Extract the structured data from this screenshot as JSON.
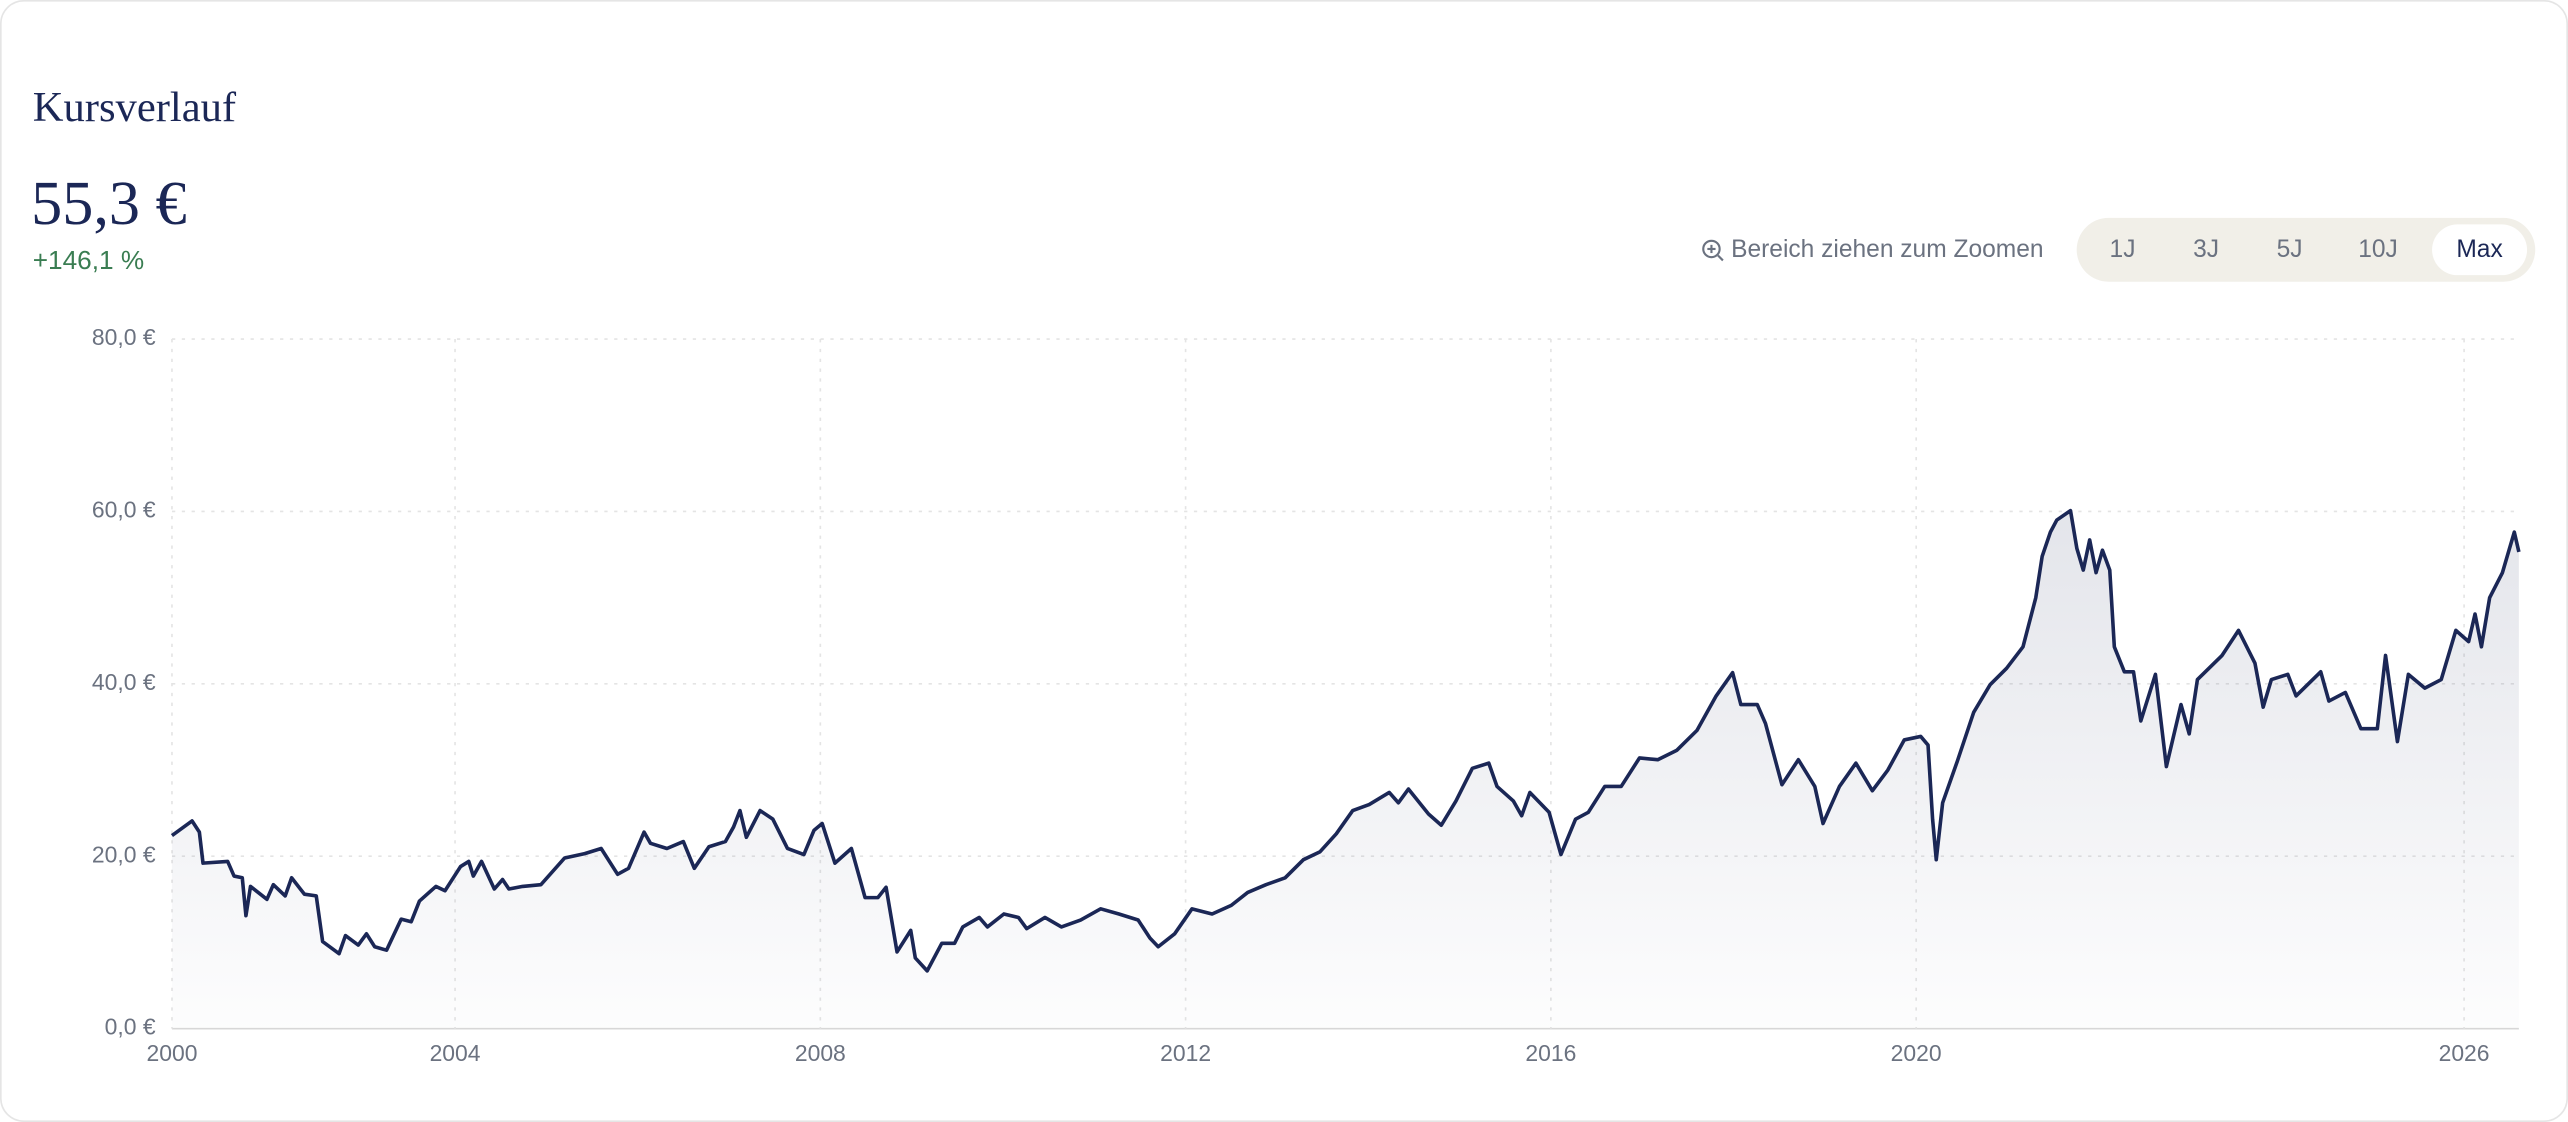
{
  "header": {
    "title": "Kursverlauf",
    "price": "55,3 €",
    "change": "+146,1 %",
    "hint": "Bereich ziehen zum Zoomen",
    "ranges": [
      "1J",
      "3J",
      "5J",
      "10J",
      "Max"
    ],
    "active_range": 4
  },
  "chart_data": {
    "type": "line",
    "color": "#1b2756",
    "grid": true,
    "xlim": [
      2000.9,
      2026.6
    ],
    "xticks": [
      {
        "value": 2000.9,
        "label": "2000"
      },
      2004,
      2008,
      2012,
      2016,
      2020,
      2026
    ],
    "ylim": [
      0,
      80
    ],
    "yticks": [
      {
        "value": 0,
        "label": "0,0 €"
      },
      {
        "value": 20,
        "label": "20,0 €"
      },
      {
        "value": 40,
        "label": "40,0 €"
      },
      {
        "value": 60,
        "label": "60,0 €"
      },
      {
        "value": 80,
        "label": "80,0 €"
      }
    ],
    "x": [
      2000.9,
      2001.12,
      2001.2,
      2001.24,
      2001.51,
      2001.58,
      2001.67,
      2001.71,
      2001.76,
      2001.94,
      2002.01,
      2002.14,
      2002.21,
      2002.35,
      2002.48,
      2002.55,
      2002.73,
      2002.8,
      2002.94,
      2003.03,
      2003.12,
      2003.25,
      2003.41,
      2003.52,
      2003.61,
      2003.79,
      2003.89,
      2004.06,
      2004.15,
      2004.2,
      2004.29,
      2004.43,
      2004.52,
      2004.59,
      2004.74,
      2004.94,
      2005.2,
      2005.42,
      2005.6,
      2005.78,
      2005.9,
      2006.07,
      2006.14,
      2006.32,
      2006.5,
      2006.62,
      2006.78,
      2006.96,
      2007.05,
      2007.12,
      2007.19,
      2007.34,
      2007.48,
      2007.64,
      2007.82,
      2007.93,
      2008.02,
      2008.16,
      2008.34,
      2008.49,
      2008.63,
      2008.72,
      2008.84,
      2008.99,
      2009.04,
      2009.17,
      2009.33,
      2009.47,
      2009.56,
      2009.74,
      2009.83,
      2010.01,
      2010.17,
      2010.26,
      2010.46,
      2010.64,
      2010.85,
      2011.07,
      2011.27,
      2011.48,
      2011.61,
      2011.7,
      2011.88,
      2012.07,
      2012.29,
      2012.5,
      2012.68,
      2012.88,
      2013.09,
      2013.29,
      2013.47,
      2013.65,
      2013.83,
      2014.01,
      2014.23,
      2014.33,
      2014.44,
      2014.66,
      2014.8,
      2014.96,
      2015.14,
      2015.32,
      2015.41,
      2015.59,
      2015.68,
      2015.77,
      2015.98,
      2016.11,
      2016.27,
      2016.41,
      2016.59,
      2016.77,
      2016.97,
      2017.17,
      2017.38,
      2017.6,
      2017.81,
      2017.99,
      2018.08,
      2018.26,
      2018.35,
      2018.53,
      2018.71,
      2018.89,
      2018.98,
      2019.16,
      2019.34,
      2019.52,
      2019.69,
      2019.87,
      2020.05,
      2020.13,
      2020.18,
      2020.22,
      2020.29,
      2020.45,
      2020.63,
      2020.81,
      2020.99,
      2021.17,
      2021.31,
      2021.38,
      2021.47,
      2021.54,
      2021.69,
      2021.76,
      2021.83,
      2021.9,
      2021.97,
      2022.04,
      2022.12,
      2022.17,
      2022.28,
      2022.38,
      2022.46,
      2022.62,
      2022.74,
      2022.9,
      2022.99,
      2023.08,
      2023.35,
      2023.53,
      2023.71,
      2023.8,
      2023.89,
      2024.07,
      2024.16,
      2024.43,
      2024.52,
      2024.7,
      2024.87,
      2025.05,
      2025.14,
      2025.27,
      2025.39,
      2025.57,
      2025.75,
      2025.91,
      2026.05,
      2026.12,
      2026.19,
      2026.28,
      2026.42,
      2026.55,
      2026.6
    ],
    "values": [
      22.4,
      24.1,
      22.8,
      19.2,
      19.4,
      17.7,
      17.5,
      13.1,
      16.5,
      15.0,
      16.7,
      15.4,
      17.5,
      15.6,
      15.4,
      10.1,
      8.7,
      10.8,
      9.7,
      11.0,
      9.5,
      9.1,
      12.7,
      12.4,
      14.8,
      16.5,
      16.0,
      18.8,
      19.4,
      17.7,
      19.4,
      16.2,
      17.3,
      16.2,
      16.5,
      16.7,
      19.8,
      20.3,
      20.9,
      17.9,
      18.6,
      22.8,
      21.5,
      20.9,
      21.7,
      18.6,
      21.1,
      21.7,
      23.4,
      25.3,
      22.2,
      25.3,
      24.3,
      20.9,
      20.2,
      23.0,
      23.8,
      19.2,
      20.9,
      15.2,
      15.2,
      16.4,
      8.9,
      11.4,
      8.2,
      6.7,
      9.9,
      9.9,
      11.8,
      12.9,
      11.8,
      13.3,
      12.9,
      11.6,
      12.9,
      11.8,
      12.6,
      13.9,
      13.3,
      12.6,
      10.5,
      9.5,
      11.0,
      13.9,
      13.3,
      14.3,
      15.8,
      16.7,
      17.5,
      19.6,
      20.5,
      22.6,
      25.3,
      26.0,
      27.4,
      26.2,
      27.8,
      24.9,
      23.6,
      26.4,
      30.2,
      30.8,
      28.1,
      26.4,
      24.7,
      27.4,
      25.1,
      20.2,
      24.3,
      25.1,
      28.1,
      28.1,
      31.4,
      31.2,
      32.3,
      34.6,
      38.6,
      41.3,
      37.6,
      37.6,
      35.4,
      28.3,
      31.2,
      28.1,
      23.8,
      28.1,
      30.8,
      27.6,
      30.0,
      33.5,
      33.9,
      32.9,
      24.3,
      19.6,
      26.2,
      31.0,
      36.7,
      39.9,
      41.8,
      44.3,
      50.0,
      54.8,
      57.6,
      59.0,
      60.1,
      55.7,
      53.2,
      56.7,
      52.9,
      55.5,
      53.2,
      44.3,
      41.4,
      41.4,
      35.7,
      41.1,
      30.4,
      37.6,
      34.2,
      40.5,
      43.3,
      46.2,
      42.4,
      37.3,
      40.5,
      41.1,
      38.6,
      41.4,
      38.0,
      39.0,
      34.8,
      34.8,
      43.3,
      33.3,
      41.1,
      39.5,
      40.5,
      46.2,
      44.9,
      48.1,
      44.3,
      50.0,
      52.9,
      57.6,
      55.3
    ]
  }
}
